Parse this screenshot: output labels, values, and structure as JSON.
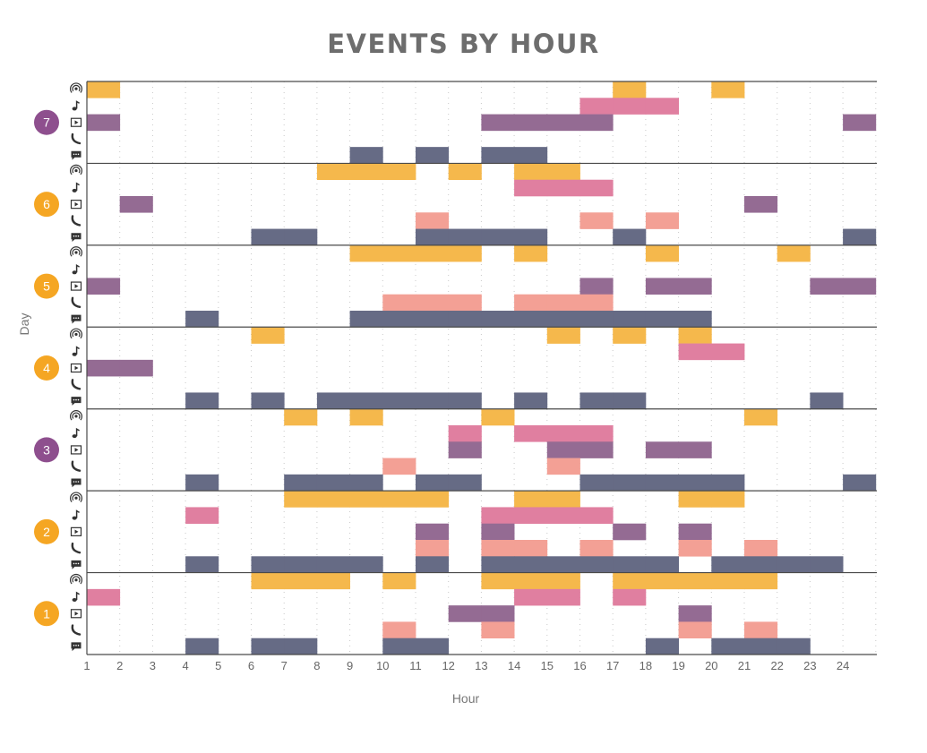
{
  "chart_data": {
    "type": "heatmap",
    "title": "EVENTS BY HOUR",
    "xlabel": "Hour",
    "ylabel": "Day",
    "x_ticks": [
      1,
      2,
      3,
      4,
      5,
      6,
      7,
      8,
      9,
      10,
      11,
      12,
      13,
      14,
      15,
      16,
      17,
      18,
      19,
      20,
      21,
      22,
      23,
      24
    ],
    "x_range": [
      1,
      25
    ],
    "grid": true,
    "event_types": [
      {
        "name": "podcast",
        "icon": "podcast-icon",
        "color": "#f5b84c"
      },
      {
        "name": "music",
        "icon": "music-note-icon",
        "color": "#e07fa0"
      },
      {
        "name": "video",
        "icon": "play-video-icon",
        "color": "#946b93"
      },
      {
        "name": "call",
        "icon": "phone-icon",
        "color": "#f3a095"
      },
      {
        "name": "message",
        "icon": "chat-message-icon",
        "color": "#666b85"
      }
    ],
    "days": [
      {
        "day": "7",
        "badge_color": "#8e4f8e",
        "events": {
          "podcast": [
            1,
            17,
            20
          ],
          "music": [
            16,
            17,
            18
          ],
          "video": [
            1,
            13,
            14,
            15,
            16,
            24
          ],
          "call": [],
          "message": [
            9,
            11,
            13,
            14
          ]
        }
      },
      {
        "day": "6",
        "badge_color": "#f5a623",
        "events": {
          "podcast": [
            8,
            9,
            10,
            12,
            14,
            15
          ],
          "music": [
            14,
            15,
            16
          ],
          "video": [
            2,
            21
          ],
          "call": [
            11,
            16,
            18
          ],
          "message": [
            6,
            7,
            11,
            12,
            13,
            14,
            17,
            24
          ]
        }
      },
      {
        "day": "5",
        "badge_color": "#f5a623",
        "events": {
          "podcast": [
            9,
            10,
            11,
            12,
            14,
            18,
            22
          ],
          "music": [],
          "video": [
            1,
            16,
            18,
            19,
            23,
            24
          ],
          "call": [
            10,
            11,
            12,
            14,
            15,
            16
          ],
          "message": [
            4,
            9,
            10,
            11,
            12,
            13,
            14,
            15,
            16,
            17,
            18,
            19
          ]
        }
      },
      {
        "day": "4",
        "badge_color": "#f5a623",
        "events": {
          "podcast": [
            6,
            15,
            17,
            19
          ],
          "music": [
            19,
            20
          ],
          "video": [
            1,
            2
          ],
          "call": [],
          "message": [
            4,
            6,
            8,
            9,
            10,
            11,
            12,
            14,
            16,
            17,
            23
          ]
        }
      },
      {
        "day": "3",
        "badge_color": "#8e4f8e",
        "events": {
          "podcast": [
            7,
            9,
            13,
            21
          ],
          "music": [
            12,
            14,
            15,
            16
          ],
          "video": [
            12,
            15,
            16,
            18,
            19
          ],
          "call": [
            10,
            15
          ],
          "message": [
            4,
            7,
            8,
            9,
            11,
            12,
            16,
            17,
            18,
            19,
            20,
            24
          ]
        }
      },
      {
        "day": "2",
        "badge_color": "#f5a623",
        "events": {
          "podcast": [
            7,
            8,
            9,
            10,
            11,
            14,
            15,
            19,
            20
          ],
          "music": [
            4,
            13,
            14,
            15,
            16
          ],
          "video": [
            11,
            13,
            17,
            19
          ],
          "call": [
            11,
            13,
            14,
            16,
            19,
            21
          ],
          "message": [
            4,
            6,
            7,
            8,
            9,
            11,
            13,
            14,
            15,
            16,
            17,
            18,
            20,
            21,
            22,
            23
          ]
        }
      },
      {
        "day": "1",
        "badge_color": "#f5a623",
        "events": {
          "podcast": [
            6,
            7,
            8,
            10,
            13,
            14,
            15,
            17,
            18,
            19,
            20,
            21
          ],
          "music": [
            1,
            14,
            15,
            17
          ],
          "video": [
            12,
            13,
            19
          ],
          "call": [
            10,
            13,
            19,
            21
          ],
          "message": [
            4,
            6,
            7,
            10,
            11,
            18,
            20,
            21,
            22
          ]
        }
      }
    ]
  }
}
